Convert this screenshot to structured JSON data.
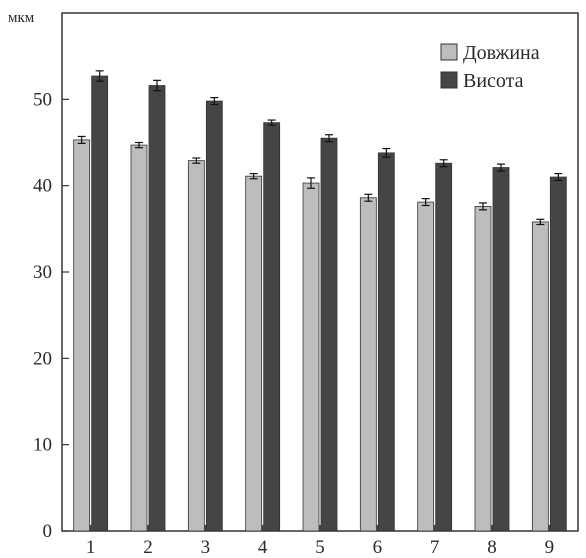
{
  "chart_data": {
    "type": "bar",
    "title": "",
    "xlabel": "",
    "ylabel": "мкм",
    "categories": [
      "1",
      "2",
      "3",
      "4",
      "5",
      "6",
      "7",
      "8",
      "9"
    ],
    "ylim": [
      0,
      60
    ],
    "yticks": [
      "0",
      "10",
      "20",
      "30",
      "40",
      "50"
    ],
    "grid": false,
    "legend_position": "top-right",
    "series": [
      {
        "name": "Довжина",
        "color": "#bdbdbd",
        "values": [
          45.3,
          44.7,
          42.9,
          41.1,
          40.3,
          38.6,
          38.1,
          37.6,
          35.8
        ],
        "errors": [
          0.4,
          0.3,
          0.3,
          0.3,
          0.6,
          0.4,
          0.4,
          0.4,
          0.3
        ]
      },
      {
        "name": "Висота",
        "color": "#454545",
        "values": [
          52.7,
          51.6,
          49.8,
          47.3,
          45.5,
          43.8,
          42.6,
          42.1,
          41.0
        ],
        "errors": [
          0.6,
          0.6,
          0.4,
          0.3,
          0.4,
          0.5,
          0.4,
          0.4,
          0.4
        ]
      }
    ]
  }
}
